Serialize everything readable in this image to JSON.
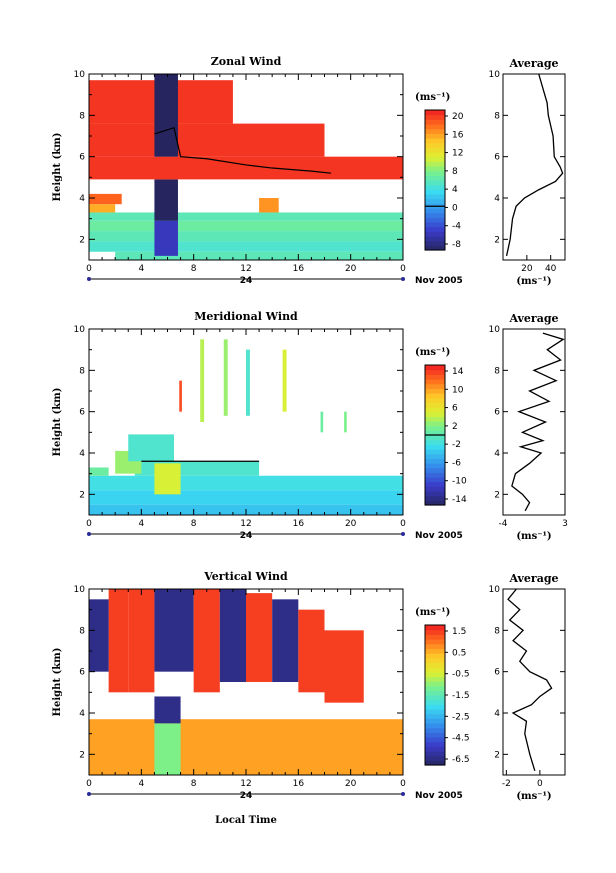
{
  "figure": {
    "date_label": "Nov 2005",
    "xlabel": "Local Time",
    "day_label": "24",
    "unit_label": "(ms⁻¹)"
  },
  "chart_data": [
    {
      "type": "heatmap",
      "title": "Zonal Wind",
      "ylabel": "Height (km)",
      "x_ticks": [
        "0",
        "4",
        "8",
        "12",
        "16",
        "20",
        "0"
      ],
      "y_ticks": [
        "2",
        "4",
        "6",
        "8",
        "10"
      ],
      "xlim": [
        0,
        24
      ],
      "ylim": [
        1,
        10
      ],
      "colorbar": {
        "ticks": [
          "-8",
          "-4",
          "0",
          "4",
          "8",
          "12",
          "16",
          "20"
        ],
        "range": [
          -10,
          22
        ],
        "marker": 0
      },
      "blocks": [
        {
          "x": [
            2.0,
            24.0
          ],
          "y": [
            1.0,
            1.4
          ],
          "v": 6
        },
        {
          "x": [
            0.0,
            24.0
          ],
          "y": [
            1.4,
            1.9
          ],
          "v": 5
        },
        {
          "x": [
            0.0,
            24.0
          ],
          "y": [
            1.9,
            2.4
          ],
          "v": 6
        },
        {
          "x": [
            0.0,
            24.0
          ],
          "y": [
            2.4,
            2.9
          ],
          "v": 7
        },
        {
          "x": [
            0.0,
            24.0
          ],
          "y": [
            2.9,
            3.3
          ],
          "v": 6
        },
        {
          "x": [
            0.0,
            2.0
          ],
          "y": [
            3.3,
            3.7
          ],
          "v": 16
        },
        {
          "x": [
            0.0,
            2.5
          ],
          "y": [
            3.7,
            4.2
          ],
          "v": 19
        },
        {
          "x": [
            13.0,
            14.5
          ],
          "y": [
            3.3,
            4.0
          ],
          "v": 17
        },
        {
          "x": [
            5.0,
            6.8
          ],
          "y": [
            1.2,
            2.9
          ],
          "v": -6
        },
        {
          "x": [
            5.0,
            6.8
          ],
          "y": [
            2.9,
            4.9
          ],
          "v": -10
        },
        {
          "x": [
            0.0,
            24.0
          ],
          "y": [
            4.9,
            6.0
          ],
          "v": 21
        },
        {
          "x": [
            0.0,
            18.0
          ],
          "y": [
            6.0,
            7.6
          ],
          "v": 21
        },
        {
          "x": [
            0.0,
            11.0
          ],
          "y": [
            7.6,
            9.7
          ],
          "v": 21
        },
        {
          "x": [
            5.0,
            6.8
          ],
          "y": [
            6.0,
            10.0
          ],
          "v": -10
        }
      ],
      "contour": [
        [
          5,
          7.1
        ],
        [
          6.5,
          7.4
        ],
        [
          7,
          6.0
        ],
        [
          9,
          5.9
        ],
        [
          12,
          5.6
        ],
        [
          14,
          5.45
        ],
        [
          17,
          5.3
        ],
        [
          18.5,
          5.2
        ]
      ],
      "average": {
        "xlabel": "(ms⁻¹)",
        "title": "Average",
        "x_ticks": [
          "20",
          "40"
        ],
        "y_ticks": [
          "2",
          "4",
          "6",
          "8",
          "10"
        ],
        "xlim": [
          0,
          52
        ],
        "ylim": [
          1,
          10
        ],
        "profile": [
          [
            1.2,
            3
          ],
          [
            2.0,
            6
          ],
          [
            3.0,
            8
          ],
          [
            3.6,
            11
          ],
          [
            4.0,
            18
          ],
          [
            4.4,
            30
          ],
          [
            4.8,
            44
          ],
          [
            5.2,
            50
          ],
          [
            5.5,
            48
          ],
          [
            6.0,
            43
          ],
          [
            7.0,
            42
          ],
          [
            8.0,
            38
          ],
          [
            8.6,
            37
          ],
          [
            9.2,
            34
          ],
          [
            9.6,
            32
          ],
          [
            10.0,
            30
          ]
        ]
      }
    },
    {
      "type": "heatmap",
      "title": "Meridional Wind",
      "ylabel": "Height (km)",
      "x_ticks": [
        "0",
        "4",
        "8",
        "12",
        "16",
        "20",
        "0"
      ],
      "y_ticks": [
        "2",
        "4",
        "6",
        "8",
        "10"
      ],
      "xlim": [
        0,
        24
      ],
      "ylim": [
        1,
        10
      ],
      "colorbar": {
        "ticks": [
          "-14",
          "-10",
          "-6",
          "-2",
          "2",
          "6",
          "10",
          "14"
        ],
        "range": [
          -16,
          16
        ],
        "marker": 0
      },
      "blocks": [
        {
          "x": [
            0.0,
            24.0
          ],
          "y": [
            1.0,
            1.5
          ],
          "v": -4
        },
        {
          "x": [
            0.0,
            24.0
          ],
          "y": [
            1.5,
            2.2
          ],
          "v": -3
        },
        {
          "x": [
            0.0,
            24.0
          ],
          "y": [
            2.2,
            2.9
          ],
          "v": -2
        },
        {
          "x": [
            3.5,
            13.0
          ],
          "y": [
            2.9,
            3.6
          ],
          "v": -1
        },
        {
          "x": [
            0.0,
            1.5
          ],
          "y": [
            2.9,
            3.3
          ],
          "v": 1
        },
        {
          "x": [
            2.0,
            4.0
          ],
          "y": [
            3.0,
            4.1
          ],
          "v": 3
        },
        {
          "x": [
            3.0,
            6.5
          ],
          "y": [
            3.6,
            4.9
          ],
          "v": -1
        },
        {
          "x": [
            5.0,
            7.0
          ],
          "y": [
            2.0,
            3.5
          ],
          "v": 5
        },
        {
          "x": [
            8.5,
            8.8
          ],
          "y": [
            5.5,
            9.5
          ],
          "v": 4
        },
        {
          "x": [
            10.3,
            10.6
          ],
          "y": [
            5.8,
            9.5
          ],
          "v": 3
        },
        {
          "x": [
            12.0,
            12.3
          ],
          "y": [
            5.8,
            9.0
          ],
          "v": -1
        },
        {
          "x": [
            14.8,
            15.1
          ],
          "y": [
            6.0,
            9.0
          ],
          "v": 5
        },
        {
          "x": [
            6.9,
            7.1
          ],
          "y": [
            6.0,
            7.5
          ],
          "v": 14
        },
        {
          "x": [
            17.7,
            17.9
          ],
          "y": [
            5.0,
            6.0
          ],
          "v": 1
        },
        {
          "x": [
            19.5,
            19.7
          ],
          "y": [
            5.0,
            6.0
          ],
          "v": 2
        }
      ],
      "contour": [
        [
          4,
          3.6
        ],
        [
          13,
          3.6
        ]
      ],
      "average": {
        "xlabel": "(ms⁻¹)",
        "title": "Average",
        "x_ticks": [
          "-4",
          "3"
        ],
        "y_ticks": [
          "2",
          "4",
          "6",
          "8",
          "10"
        ],
        "xlim": [
          -4,
          3
        ],
        "ylim": [
          1,
          10
        ],
        "profile": [
          [
            1.2,
            -1.5
          ],
          [
            1.6,
            -1.0
          ],
          [
            2.0,
            -1.8
          ],
          [
            2.4,
            -3.0
          ],
          [
            3.0,
            -2.6
          ],
          [
            3.5,
            -1.0
          ],
          [
            4.0,
            0.3
          ],
          [
            4.3,
            -2.0
          ],
          [
            4.6,
            0.5
          ],
          [
            5.0,
            -1.8
          ],
          [
            5.5,
            0.8
          ],
          [
            6.0,
            -2.2
          ],
          [
            6.5,
            1.2
          ],
          [
            7.0,
            -1.0
          ],
          [
            7.5,
            2.0
          ],
          [
            8.0,
            -0.5
          ],
          [
            8.5,
            2.5
          ],
          [
            9.0,
            1.0
          ],
          [
            9.5,
            2.8
          ],
          [
            9.8,
            0.5
          ]
        ]
      }
    },
    {
      "type": "heatmap",
      "title": "Vertical Wind",
      "ylabel": "Height (km)",
      "x_ticks": [
        "0",
        "4",
        "8",
        "12",
        "16",
        "20",
        "0"
      ],
      "y_ticks": [
        "2",
        "4",
        "6",
        "8",
        "10"
      ],
      "xlim": [
        0,
        24
      ],
      "ylim": [
        1,
        10
      ],
      "colorbar": {
        "ticks": [
          "-6.5",
          "-4.5",
          "-2.5",
          "-1.5",
          "-0.5",
          "0.5",
          "1.5"
        ],
        "range": [
          -7,
          2.2
        ],
        "marker": null
      },
      "blocks": [
        {
          "x": [
            0.0,
            24.0
          ],
          "y": [
            1.0,
            3.7
          ],
          "v": 0.6
        },
        {
          "x": [
            5.0,
            7.0
          ],
          "y": [
            1.0,
            3.5
          ],
          "v": -1.8
        },
        {
          "x": [
            5.0,
            7.0
          ],
          "y": [
            3.5,
            4.8
          ],
          "v": -6.5
        },
        {
          "x": [
            1.5,
            3.0
          ],
          "y": [
            5.0,
            10.0
          ],
          "v": 1.8
        },
        {
          "x": [
            3.0,
            5.0
          ],
          "y": [
            5.0,
            10.0
          ],
          "v": 1.8
        },
        {
          "x": [
            5.0,
            8.0
          ],
          "y": [
            6.0,
            10.0
          ],
          "v": -6.5
        },
        {
          "x": [
            8.0,
            10.0
          ],
          "y": [
            5.0,
            10.0
          ],
          "v": 1.8
        },
        {
          "x": [
            10.0,
            12.0
          ],
          "y": [
            5.5,
            10.0
          ],
          "v": -6.5
        },
        {
          "x": [
            12.0,
            14.0
          ],
          "y": [
            5.5,
            9.8
          ],
          "v": 1.8
        },
        {
          "x": [
            14.0,
            16.0
          ],
          "y": [
            5.5,
            9.5
          ],
          "v": -6.5
        },
        {
          "x": [
            16.0,
            18.0
          ],
          "y": [
            5.0,
            9.0
          ],
          "v": 1.8
        },
        {
          "x": [
            18.0,
            21.0
          ],
          "y": [
            4.5,
            8.0
          ],
          "v": 1.8
        },
        {
          "x": [
            0.0,
            1.5
          ],
          "y": [
            6.0,
            9.5
          ],
          "v": -6.5
        }
      ],
      "contour": [],
      "average": {
        "xlabel": "(ms⁻¹)",
        "title": "Average",
        "x_ticks": [
          "-2",
          "0"
        ],
        "y_ticks": [
          "2",
          "4",
          "6",
          "8",
          "10"
        ],
        "xlim": [
          -2.2,
          1.5
        ],
        "ylim": [
          1,
          10
        ],
        "profile": [
          [
            1.2,
            -0.3
          ],
          [
            2.0,
            -0.6
          ],
          [
            3.0,
            -0.9
          ],
          [
            3.6,
            -0.8
          ],
          [
            4.0,
            -1.6
          ],
          [
            4.4,
            -0.5
          ],
          [
            4.8,
            0.0
          ],
          [
            5.2,
            0.7
          ],
          [
            5.6,
            0.4
          ],
          [
            6.0,
            -0.6
          ],
          [
            6.5,
            -1.2
          ],
          [
            7.0,
            -0.8
          ],
          [
            7.5,
            -1.6
          ],
          [
            8.0,
            -1.0
          ],
          [
            8.5,
            -1.8
          ],
          [
            9.0,
            -1.2
          ],
          [
            9.5,
            -1.9
          ],
          [
            10.0,
            -1.4
          ]
        ]
      }
    }
  ]
}
